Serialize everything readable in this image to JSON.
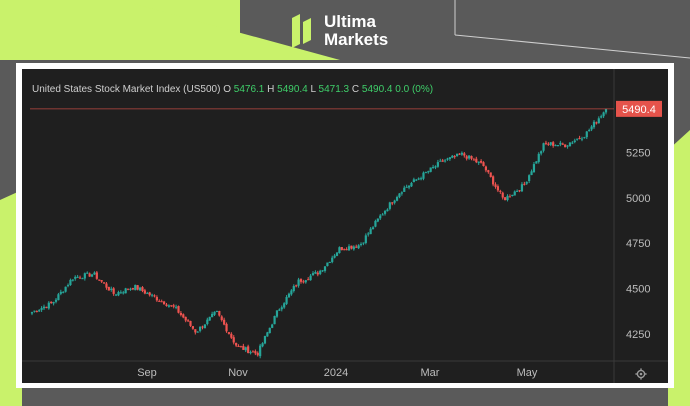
{
  "brand": {
    "line1": "Ultima",
    "line2": "Markets"
  },
  "legend": {
    "name": "United States Stock Market Index (US500)",
    "o_label": "O",
    "o": "5476.1",
    "h_label": "H",
    "h": "5490.4",
    "l_label": "L",
    "l": "5471.3",
    "c_label": "C",
    "c": "5490.4",
    "change": "0.0 (0%)"
  },
  "colors": {
    "up": "#26a69a",
    "down": "#ef5350",
    "background": "#1f1f1f",
    "brand_lime": "#c9f26b",
    "last_price_label": "#e5534b"
  },
  "chart_data": {
    "type": "candlestick",
    "title": "",
    "xlabel": "",
    "ylabel": "",
    "ylim": [
      4100,
      5600
    ],
    "y_ticks": [
      4250,
      4500,
      4750,
      5000,
      5250
    ],
    "x_ticks": [
      "Sep",
      "Nov",
      "2024",
      "Mar",
      "May"
    ],
    "last_price": 5490.4,
    "grid": false,
    "close_path": [
      [
        "2023-07",
        4370
      ],
      [
        "2023-07",
        4420
      ],
      [
        "2023-08",
        4560
      ],
      [
        "2023-08",
        4580
      ],
      [
        "2023-08",
        4470
      ],
      [
        "2023-09",
        4510
      ],
      [
        "2023-09",
        4450
      ],
      [
        "2023-09",
        4390
      ],
      [
        "2023-10",
        4260
      ],
      [
        "2023-10",
        4370
      ],
      [
        "2023-10",
        4180
      ],
      [
        "2023-11",
        4140
      ],
      [
        "2023-11",
        4380
      ],
      [
        "2023-11",
        4540
      ],
      [
        "2023-12",
        4590
      ],
      [
        "2023-12",
        4720
      ],
      [
        "2024-01",
        4740
      ],
      [
        "2024-01",
        4900
      ],
      [
        "2024-02",
        5040
      ],
      [
        "2024-02",
        5120
      ],
      [
        "2024-03",
        5200
      ],
      [
        "2024-03",
        5240
      ],
      [
        "2024-04",
        5180
      ],
      [
        "2024-04",
        4990
      ],
      [
        "2024-05",
        5070
      ],
      [
        "2024-05",
        5300
      ],
      [
        "2024-05",
        5290
      ],
      [
        "2024-06",
        5350
      ],
      [
        "2024-06",
        5490.4
      ]
    ]
  }
}
